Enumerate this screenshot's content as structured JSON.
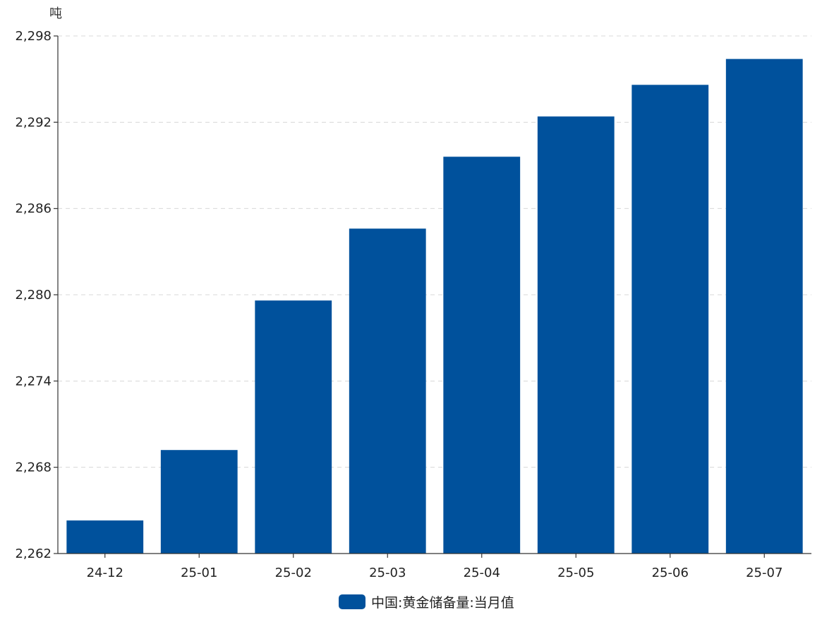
{
  "chart_data": {
    "type": "bar",
    "y_unit": "吨",
    "categories": [
      "24-12",
      "25-01",
      "25-02",
      "25-03",
      "25-04",
      "25-05",
      "25-06",
      "25-07"
    ],
    "series": [
      {
        "name": "中国:黄金储备量:当月值",
        "color": "#00519c",
        "values": [
          2264.3,
          2269.2,
          2279.6,
          2284.6,
          2289.6,
          2292.4,
          2294.6,
          2296.4
        ]
      }
    ],
    "ylim": [
      2262,
      2298
    ],
    "yticks": [
      2262,
      2268,
      2274,
      2280,
      2286,
      2292,
      2298
    ],
    "ytick_labels": [
      "2,262",
      "2,268",
      "2,274",
      "2,280",
      "2,286",
      "2,292",
      "2,298"
    ],
    "grid": true,
    "legend_position": "bottom-center"
  }
}
